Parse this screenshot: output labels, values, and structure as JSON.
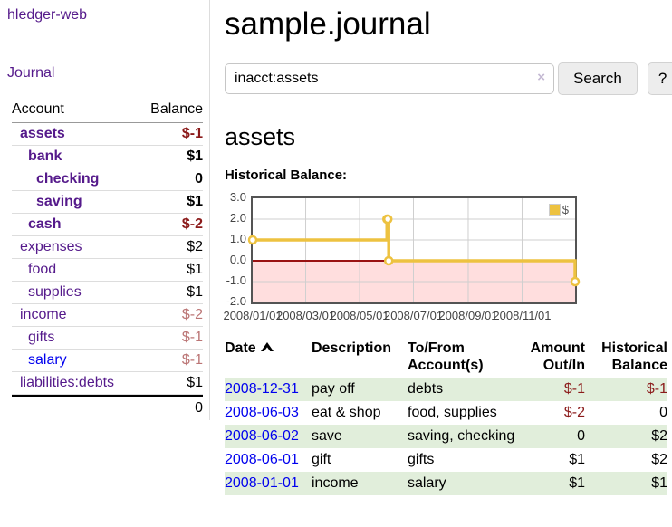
{
  "palette": {
    "link_purple": "#551a8b",
    "link_blue": "#0000ee",
    "negative_strong": "#8b1a1a",
    "negative_muted": "#bb7575",
    "row_green": "#e1eedb",
    "series_gold": "#edc240",
    "zero_line_red": "#9a1212",
    "negative_region_pink": "rgba(255,0,0,0.13)",
    "grid_gray": "#cfcfcf",
    "plot_border_gray": "#545454"
  },
  "sidebar": {
    "brand": "hledger-web",
    "journal_link": "Journal",
    "accounts": {
      "col_account": "Account",
      "col_balance": "Balance",
      "rows": [
        {
          "name": "assets",
          "balance": "$-1"
        },
        {
          "name": "bank",
          "balance": "$1"
        },
        {
          "name": "checking",
          "balance": "0"
        },
        {
          "name": "saving",
          "balance": "$1"
        },
        {
          "name": "cash",
          "balance": "$-2"
        },
        {
          "name": "expenses",
          "balance": "$2"
        },
        {
          "name": "food",
          "balance": "$1"
        },
        {
          "name": "supplies",
          "balance": "$1"
        },
        {
          "name": "income",
          "balance": "$-2"
        },
        {
          "name": "gifts",
          "balance": "$-1"
        },
        {
          "name": "salary",
          "balance": "$-1"
        },
        {
          "name": "liabilities:debts",
          "balance": "$1"
        }
      ],
      "total": "0"
    }
  },
  "main": {
    "title": "sample.journal",
    "search": {
      "value": "inacct:assets",
      "clear_icon": "×",
      "search_button": "Search",
      "help_button": "?"
    },
    "account_heading": "assets",
    "chart_label": "Historical Balance:",
    "register": {
      "headers": {
        "date": "Date",
        "description": "Description",
        "accounts": "To/From Account(s)",
        "amount": "Amount Out/In",
        "balance": "Historical Balance"
      },
      "rows": [
        {
          "date": "2008-12-31",
          "description": "pay off",
          "accounts": "debts",
          "amount": "$-1",
          "balance": "$-1"
        },
        {
          "date": "2008-06-03",
          "description": "eat & shop",
          "accounts": "food, supplies",
          "amount": "$-2",
          "balance": "0"
        },
        {
          "date": "2008-06-02",
          "description": "save",
          "accounts": "saving, checking",
          "amount": "0",
          "balance": "$2"
        },
        {
          "date": "2008-06-01",
          "description": "gift",
          "accounts": "gifts",
          "amount": "$1",
          "balance": "$2"
        },
        {
          "date": "2008-01-01",
          "description": "income",
          "accounts": "salary",
          "amount": "$1",
          "balance": "$1"
        }
      ]
    }
  },
  "chart_data": {
    "type": "line",
    "title": "Historical Balance",
    "legend": [
      "$"
    ],
    "legend_position": "top-right",
    "step": true,
    "series": [
      {
        "name": "$",
        "color": "#edc240",
        "points": [
          [
            "2008-01-01",
            1
          ],
          [
            "2008-06-01",
            2
          ],
          [
            "2008-06-02",
            2
          ],
          [
            "2008-06-03",
            0
          ],
          [
            "2008-12-31",
            -1
          ]
        ]
      }
    ],
    "x_range": [
      "2008-01-01",
      "2008-12-31"
    ],
    "ylim": [
      -2,
      3
    ],
    "y_ticks": [
      "3.0",
      "2.0",
      "1.0",
      "0.0",
      "-1.0",
      "-2.0"
    ],
    "x_ticks": [
      "2008/01/01",
      "2008/03/01",
      "2008/05/01",
      "2008/07/01",
      "2008/09/01",
      "2008/11/01"
    ],
    "grid": true,
    "negative_region_fill": "rgba(255,0,0,0.13)",
    "zero_line_color": "#9a1212"
  }
}
